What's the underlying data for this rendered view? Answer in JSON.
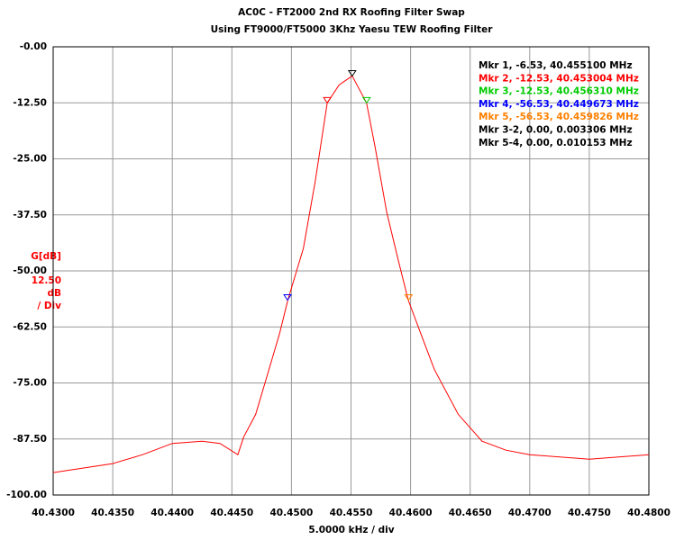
{
  "chart_data": {
    "type": "line",
    "title": "AC0C - FT2000 2nd RX Roofing Filter Swap",
    "subtitle": "Using FT9000/FT5000 3Khz Yaesu TEW Roofing Filter",
    "x_label": "5.0000 kHz / div",
    "y_label": "G[dB]",
    "y_scale_note": [
      "12.50",
      "dB",
      "/ Div"
    ],
    "color": "#ff0000",
    "x": [
      40.43,
      40.4325,
      40.435,
      40.4375,
      40.44,
      40.4425,
      40.444,
      40.4455,
      40.446,
      40.447,
      40.448,
      40.449,
      40.4497,
      40.451,
      40.452,
      40.453,
      40.454,
      40.4551,
      40.4555,
      40.4563,
      40.457,
      40.458,
      40.459,
      40.4598,
      40.461,
      40.462,
      40.464,
      40.466,
      40.468,
      40.47,
      40.475,
      40.48
    ],
    "values": [
      -95,
      -94,
      -93,
      -91,
      -88.5,
      -88,
      -88.5,
      -91,
      -87,
      -82,
      -73,
      -64,
      -56.5,
      -45,
      -30,
      -12.5,
      -8.5,
      -6.5,
      -8.5,
      -12.5,
      -22,
      -37,
      -48,
      -56.5,
      -65,
      -72,
      -82,
      -88,
      -90,
      -91,
      -92,
      -91
    ],
    "markers": [
      {
        "label": "Mkr 1, -6.53, 40.455100 MHz",
        "color": "#000000",
        "x": 40.4551,
        "y": -6.53
      },
      {
        "label": "Mkr 2, -12.53, 40.453004 MHz",
        "color": "#ff0000",
        "x": 40.453004,
        "y": -12.53
      },
      {
        "label": "Mkr 3, -12.53, 40.456310 MHz",
        "color": "#00cc00",
        "x": 40.45631,
        "y": -12.53
      },
      {
        "label": "Mkr 4, -56.53, 40.449673 MHz",
        "color": "#0000ff",
        "x": 40.449673,
        "y": -56.53
      },
      {
        "label": "Mkr 5, -56.53, 40.459826 MHz",
        "color": "#ff8000",
        "x": 40.459826,
        "y": -56.53
      }
    ],
    "marker_notes": [
      "Mkr 3-2, 0.00, 0.003306 MHz",
      "Mkr 5-4, 0.00, 0.010153 MHz"
    ],
    "xlim": [
      40.43,
      40.48
    ],
    "ylim": [
      -100,
      0
    ],
    "xticks": [
      {
        "value": 40.43,
        "label": "40.4300"
      },
      {
        "value": 40.435,
        "label": "40.4350"
      },
      {
        "value": 40.44,
        "label": "40.4400"
      },
      {
        "value": 40.445,
        "label": "40.4450"
      },
      {
        "value": 40.45,
        "label": "40.4500"
      },
      {
        "value": 40.455,
        "label": "40.4550"
      },
      {
        "value": 40.46,
        "label": "40.4600"
      },
      {
        "value": 40.465,
        "label": "40.4650"
      },
      {
        "value": 40.47,
        "label": "40.4700"
      },
      {
        "value": 40.475,
        "label": "40.4750"
      },
      {
        "value": 40.48,
        "label": "40.4800"
      }
    ],
    "yticks": [
      {
        "value": 0,
        "label": "-0.00"
      },
      {
        "value": -12.5,
        "label": "-12.50"
      },
      {
        "value": -25,
        "label": "-25.00"
      },
      {
        "value": -37.5,
        "label": "-37.50"
      },
      {
        "value": -50,
        "label": "-50.00"
      },
      {
        "value": -62.5,
        "label": "-62.50"
      },
      {
        "value": -75,
        "label": "-75.00"
      },
      {
        "value": -87.5,
        "label": "-87.50"
      },
      {
        "value": -100,
        "label": "-100.00"
      }
    ],
    "grid": true
  }
}
